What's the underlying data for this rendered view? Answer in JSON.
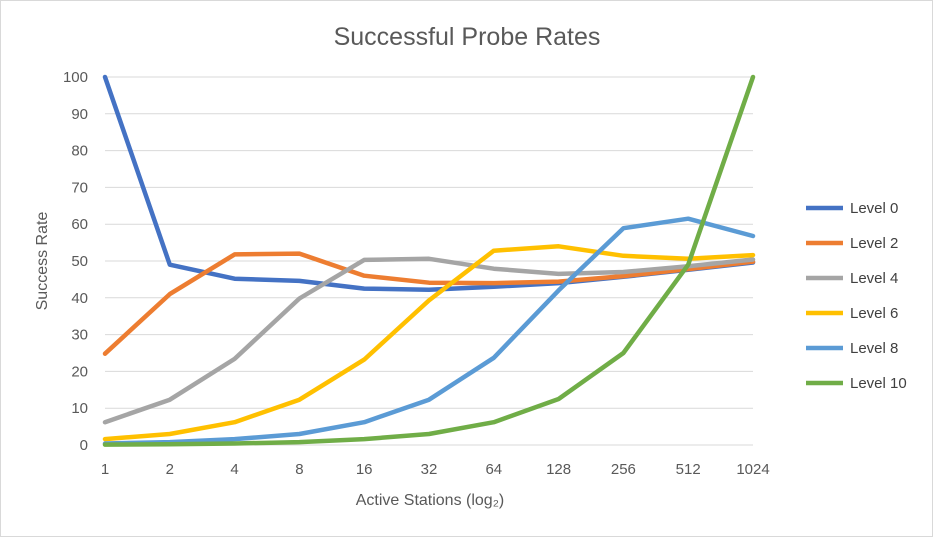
{
  "chart_data": {
    "type": "line",
    "title": "Successful Probe Rates",
    "xlabel": "Active Stations (log₂)",
    "ylabel": "Success Rate",
    "ylim": [
      0,
      100
    ],
    "y_ticks": [
      0,
      10,
      20,
      30,
      40,
      50,
      60,
      70,
      80,
      90,
      100
    ],
    "categories": [
      "1",
      "2",
      "4",
      "8",
      "16",
      "32",
      "64",
      "128",
      "256",
      "512",
      "1024"
    ],
    "grid": true,
    "legend_position": "right",
    "series": [
      {
        "name": "Level 0",
        "color": "#4472C4",
        "values": [
          100,
          49,
          45.2,
          44.6,
          42.5,
          42.2,
          43,
          44,
          45.7,
          47.6,
          49.6
        ]
      },
      {
        "name": "Level 2",
        "color": "#ED7D31",
        "values": [
          24.8,
          41,
          51.8,
          52,
          46,
          44.1,
          44,
          44.4,
          45.9,
          47.8,
          49.8
        ]
      },
      {
        "name": "Level 4",
        "color": "#A5A5A5",
        "values": [
          6.2,
          12.3,
          23.4,
          39.8,
          50.3,
          50.6,
          47.9,
          46.5,
          47,
          48.6,
          50.4
        ]
      },
      {
        "name": "Level 6",
        "color": "#FFC000",
        "values": [
          1.6,
          3,
          6.2,
          12.3,
          23.2,
          39.3,
          52.8,
          54,
          51.4,
          50.6,
          51.6
        ]
      },
      {
        "name": "Level 8",
        "color": "#5B9BD5",
        "values": [
          0.4,
          0.8,
          1.6,
          3,
          6.2,
          12.3,
          23.7,
          42,
          58.9,
          61.5,
          56.8
        ]
      },
      {
        "name": "Level 10",
        "color": "#70AD47",
        "values": [
          0.1,
          0.2,
          0.4,
          0.8,
          1.6,
          3,
          6.2,
          12.5,
          25,
          49,
          100
        ]
      }
    ]
  }
}
